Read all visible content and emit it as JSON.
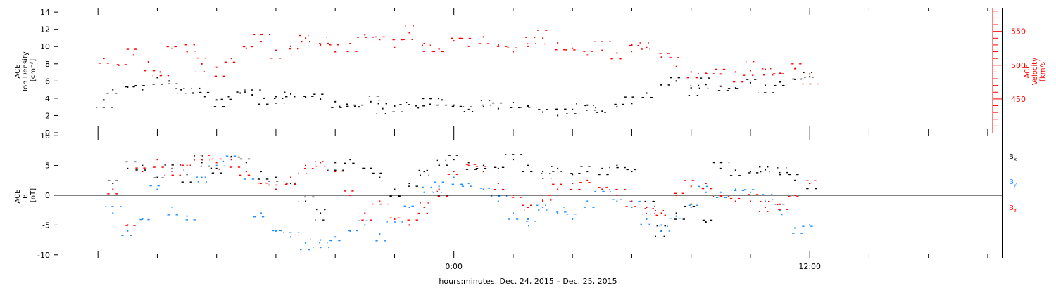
{
  "x_axis_label": "hours:minutes, Dec. 24, 2015 – Dec. 25, 2015",
  "colors": {
    "black": "#000000",
    "red": "#ff0000",
    "blue": "#1f8fff"
  },
  "chart_data": [
    {
      "type": "scatter",
      "panel": "top",
      "ylabel": [
        "ACE",
        "Ion Density",
        "[cm⁻³]"
      ],
      "ylabel_right": [
        "ACE",
        "Velocity",
        "[km/s]"
      ],
      "x_range_hours": [
        -13.5,
        18.5
      ],
      "x_ticks": [
        {
          "x": 0,
          "label": "0:00"
        },
        {
          "x": 12,
          "label": "12:00"
        }
      ],
      "ylim": [
        0,
        14.5
      ],
      "yticks": [
        0,
        2,
        4,
        6,
        8,
        10,
        12,
        14
      ],
      "ylim_right": [
        400,
        585
      ],
      "yticks_right": [
        450,
        500,
        550
      ],
      "grid": false,
      "series": [
        {
          "axis": "left",
          "color": "black",
          "points": [
            [
              -11.8,
              3.8
            ],
            [
              -11.5,
              5.0
            ],
            [
              -11.0,
              5.3
            ],
            [
              -10.5,
              5.0
            ],
            [
              -10.0,
              6.4
            ],
            [
              -9.6,
              6.0
            ],
            [
              -9.2,
              5.0
            ],
            [
              -8.8,
              4.6
            ],
            [
              -8.4,
              4.2
            ],
            [
              -8.0,
              3.8
            ],
            [
              -7.6,
              4.2
            ],
            [
              -7.2,
              4.6
            ],
            [
              -6.8,
              4.4
            ],
            [
              -6.4,
              4.0
            ],
            [
              -6.0,
              4.2
            ],
            [
              -5.5,
              4.5
            ],
            [
              -5.0,
              4.1
            ],
            [
              -4.5,
              3.9
            ],
            [
              -4.0,
              3.6
            ],
            [
              -3.6,
              3.3
            ],
            [
              -3.2,
              3.0
            ],
            [
              -2.8,
              3.6
            ],
            [
              -2.4,
              2.8
            ],
            [
              -2.0,
              3.1
            ],
            [
              -1.6,
              3.5
            ],
            [
              -1.2,
              2.9
            ],
            [
              -0.8,
              3.3
            ],
            [
              -0.4,
              3.8
            ],
            [
              0.0,
              3.2
            ],
            [
              0.5,
              2.7
            ],
            [
              1.0,
              3.0
            ],
            [
              1.5,
              2.8
            ],
            [
              2.0,
              3.5
            ],
            [
              2.5,
              3.1
            ],
            [
              3.0,
              2.4
            ],
            [
              3.5,
              2.0
            ],
            [
              4.0,
              2.7
            ],
            [
              4.5,
              3.2
            ],
            [
              5.0,
              2.5
            ],
            [
              5.5,
              3.0
            ],
            [
              6.0,
              3.4
            ],
            [
              6.5,
              4.6
            ],
            [
              7.0,
              5.6
            ],
            [
              7.5,
              6.0
            ],
            [
              8.0,
              5.2
            ],
            [
              8.5,
              5.6
            ],
            [
              9.0,
              5.4
            ],
            [
              9.5,
              5.2
            ],
            [
              10.0,
              5.8
            ],
            [
              10.5,
              5.5
            ],
            [
              11.0,
              5.9
            ],
            [
              11.5,
              6.2
            ],
            [
              12.0,
              6.5
            ]
          ]
        },
        {
          "axis": "right",
          "color": "red",
          "points": [
            [
              -11.8,
              510
            ],
            [
              -11.3,
              500
            ],
            [
              -10.8,
              515
            ],
            [
              -10.3,
              505
            ],
            [
              -9.9,
              490
            ],
            [
              -9.5,
              525
            ],
            [
              -9.0,
              520
            ],
            [
              -8.5,
              502
            ],
            [
              -8.0,
              497
            ],
            [
              -7.5,
              510
            ],
            [
              -7.0,
              525
            ],
            [
              -6.5,
              535
            ],
            [
              -6.0,
              522
            ],
            [
              -5.5,
              528
            ],
            [
              -5.0,
              540
            ],
            [
              -4.5,
              530
            ],
            [
              -4.0,
              520
            ],
            [
              -3.5,
              532
            ],
            [
              -3.0,
              545
            ],
            [
              -2.5,
              538
            ],
            [
              -2.0,
              526
            ],
            [
              -1.5,
              548
            ],
            [
              -1.0,
              532
            ],
            [
              -0.5,
              524
            ],
            [
              0.0,
              536
            ],
            [
              0.5,
              528
            ],
            [
              1.0,
              542
            ],
            [
              1.5,
              530
            ],
            [
              2.0,
              520
            ],
            [
              2.5,
              528
            ],
            [
              3.0,
              540
            ],
            [
              3.5,
              533
            ],
            [
              4.0,
              525
            ],
            [
              4.5,
              515
            ],
            [
              5.0,
              522
            ],
            [
              5.5,
              518
            ],
            [
              6.0,
              530
            ],
            [
              6.5,
              526
            ],
            [
              7.0,
              512
            ],
            [
              7.5,
              498
            ],
            [
              8.0,
              490
            ],
            [
              8.5,
              488
            ],
            [
              9.0,
              487
            ],
            [
              9.5,
              490
            ],
            [
              10.0,
              492
            ],
            [
              10.5,
              494
            ],
            [
              11.0,
              488
            ],
            [
              11.5,
              495
            ],
            [
              12.0,
              487
            ]
          ]
        }
      ]
    },
    {
      "type": "scatter",
      "panel": "bottom",
      "ylabel": [
        "ACE",
        "B",
        "[nT]"
      ],
      "x_range_hours": [
        -13.5,
        18.5
      ],
      "x_ticks": [
        {
          "x": 0,
          "label": "0:00"
        },
        {
          "x": 12,
          "label": "12:00"
        }
      ],
      "ylim": [
        -10.5,
        10.5
      ],
      "yticks": [
        -10,
        -5,
        0,
        5,
        10
      ],
      "zero_line": true,
      "grid": false,
      "legend_position": "right",
      "series": [
        {
          "name": "Bx",
          "label_main": "B",
          "label_sub": "x",
          "color": "black",
          "points": [
            [
              -11.5,
              2.0
            ],
            [
              -11.0,
              4.5
            ],
            [
              -10.5,
              5.0
            ],
            [
              -10.0,
              3.0
            ],
            [
              -9.5,
              4.5
            ],
            [
              -9.0,
              3.5
            ],
            [
              -8.5,
              5.5
            ],
            [
              -8.0,
              4.5
            ],
            [
              -7.5,
              6.5
            ],
            [
              -7.0,
              5.5
            ],
            [
              -6.5,
              4.0
            ],
            [
              -6.0,
              3.0
            ],
            [
              -5.5,
              2.0
            ],
            [
              -5.0,
              -1.0
            ],
            [
              -4.5,
              -3.0
            ],
            [
              -4.0,
              5.5
            ],
            [
              -3.5,
              6.0
            ],
            [
              -3.0,
              4.5
            ],
            [
              -2.5,
              3.0
            ],
            [
              -2.0,
              1.0
            ],
            [
              -1.5,
              2.0
            ],
            [
              -1.0,
              4.0
            ],
            [
              -0.5,
              5.0
            ],
            [
              0.0,
              6.0
            ],
            [
              0.5,
              5.5
            ],
            [
              1.0,
              5.0
            ],
            [
              1.5,
              4.5
            ],
            [
              2.0,
              6.0
            ],
            [
              2.5,
              5.0
            ],
            [
              3.0,
              4.0
            ],
            [
              3.5,
              4.5
            ],
            [
              4.0,
              3.5
            ],
            [
              4.5,
              4.0
            ],
            [
              5.0,
              4.5
            ],
            [
              5.5,
              5.0
            ],
            [
              6.0,
              4.0
            ],
            [
              6.5,
              -2.0
            ],
            [
              7.0,
              -6.0
            ],
            [
              7.5,
              -3.0
            ],
            [
              8.0,
              -1.5
            ],
            [
              8.5,
              -4.5
            ],
            [
              9.0,
              4.5
            ],
            [
              9.5,
              4.2
            ],
            [
              10.0,
              4.0
            ],
            [
              10.5,
              4.3
            ],
            [
              11.0,
              3.5
            ],
            [
              11.5,
              2.5
            ],
            [
              12.0,
              2.0
            ]
          ]
        },
        {
          "name": "By",
          "label_main": "B",
          "label_sub": "y",
          "color": "blue",
          "points": [
            [
              -11.5,
              -3.0
            ],
            [
              -11.0,
              -6.0
            ],
            [
              -10.5,
              -4.0
            ],
            [
              -10.0,
              1.0
            ],
            [
              -9.5,
              -2.0
            ],
            [
              -9.0,
              -3.5
            ],
            [
              -8.5,
              3.0
            ],
            [
              -8.0,
              5.0
            ],
            [
              -7.5,
              6.0
            ],
            [
              -7.0,
              4.0
            ],
            [
              -6.5,
              -3.0
            ],
            [
              -6.0,
              -6.0
            ],
            [
              -5.5,
              -7.0
            ],
            [
              -5.0,
              -8.0
            ],
            [
              -4.5,
              -7.5
            ],
            [
              -4.0,
              -7.0
            ],
            [
              -3.5,
              -6.0
            ],
            [
              -3.0,
              -5.0
            ],
            [
              -2.5,
              -6.5
            ],
            [
              -2.0,
              -4.0
            ],
            [
              -1.5,
              -2.0
            ],
            [
              -1.0,
              0.5
            ],
            [
              -0.5,
              1.5
            ],
            [
              0.0,
              3.0
            ],
            [
              0.5,
              2.0
            ],
            [
              1.0,
              1.0
            ],
            [
              1.5,
              -1.0
            ],
            [
              2.0,
              -3.0
            ],
            [
              2.5,
              -4.0
            ],
            [
              3.0,
              -2.0
            ],
            [
              3.5,
              -3.0
            ],
            [
              4.0,
              -4.0
            ],
            [
              4.5,
              -1.0
            ],
            [
              5.0,
              1.0
            ],
            [
              5.5,
              -1.0
            ],
            [
              6.0,
              -2.0
            ],
            [
              6.5,
              -4.0
            ],
            [
              7.0,
              -5.0
            ],
            [
              7.5,
              -3.5
            ],
            [
              8.0,
              -2.0
            ],
            [
              8.5,
              0.5
            ],
            [
              9.0,
              0.5
            ],
            [
              9.5,
              1.0
            ],
            [
              10.0,
              0.5
            ],
            [
              10.5,
              -1.0
            ],
            [
              11.0,
              -2.5
            ],
            [
              11.5,
              -5.5
            ],
            [
              12.0,
              -5.0
            ]
          ]
        },
        {
          "name": "Bz",
          "label_main": "B",
          "label_sub": "z",
          "color": "red",
          "points": [
            [
              -11.5,
              1.0
            ],
            [
              -11.0,
              -5.0
            ],
            [
              -10.5,
              4.0
            ],
            [
              -10.0,
              6.0
            ],
            [
              -9.5,
              4.0
            ],
            [
              -9.0,
              5.0
            ],
            [
              -8.5,
              6.0
            ],
            [
              -8.0,
              5.5
            ],
            [
              -7.5,
              6.0
            ],
            [
              -7.0,
              4.0
            ],
            [
              -6.5,
              2.0
            ],
            [
              -6.0,
              1.0
            ],
            [
              -5.5,
              3.0
            ],
            [
              -5.0,
              5.0
            ],
            [
              -4.5,
              5.5
            ],
            [
              -4.0,
              4.0
            ],
            [
              -3.5,
              0.0
            ],
            [
              -3.0,
              -3.0
            ],
            [
              -2.5,
              -1.0
            ],
            [
              -2.0,
              -4.0
            ],
            [
              -1.5,
              -5.0
            ],
            [
              -1.0,
              -2.0
            ],
            [
              -0.5,
              1.0
            ],
            [
              0.0,
              4.0
            ],
            [
              0.5,
              5.0
            ],
            [
              1.0,
              4.0
            ],
            [
              1.5,
              2.0
            ],
            [
              2.0,
              0.0
            ],
            [
              2.5,
              -2.0
            ],
            [
              3.0,
              -1.0
            ],
            [
              3.5,
              1.0
            ],
            [
              4.0,
              2.0
            ],
            [
              4.5,
              2.5
            ],
            [
              5.0,
              1.0
            ],
            [
              5.5,
              0.0
            ],
            [
              6.0,
              -1.0
            ],
            [
              6.5,
              -2.0
            ],
            [
              7.0,
              -3.0
            ],
            [
              7.5,
              0.0
            ],
            [
              8.0,
              1.5
            ],
            [
              8.5,
              2.0
            ],
            [
              9.0,
              0.0
            ],
            [
              9.5,
              -1.0
            ],
            [
              10.0,
              -1.0
            ],
            [
              10.5,
              -2.0
            ],
            [
              11.0,
              -1.5
            ],
            [
              11.5,
              0.0
            ],
            [
              12.0,
              2.0
            ]
          ]
        }
      ]
    }
  ]
}
